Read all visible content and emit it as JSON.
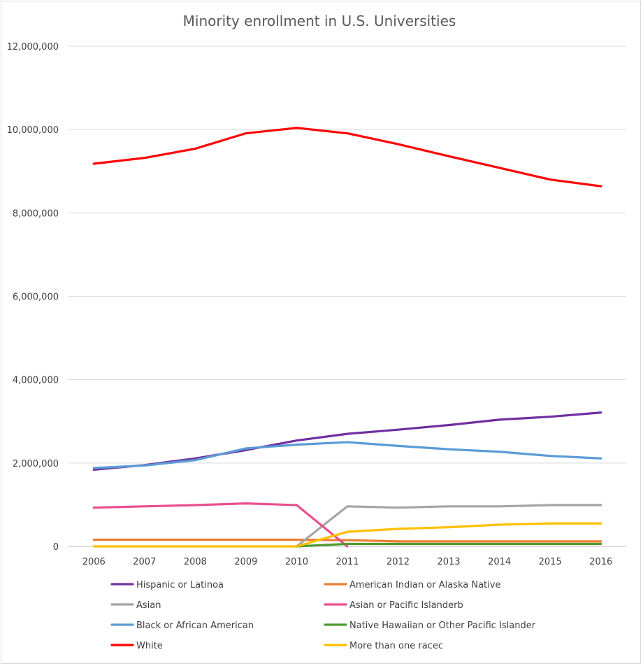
{
  "chart_data": {
    "type": "line",
    "title": "Minority enrollment in U.S. Universities",
    "xlabel": "",
    "ylabel": "",
    "categories": [
      "2006",
      "2007",
      "2008",
      "2009",
      "2010",
      "2011",
      "2012",
      "2013",
      "2014",
      "2015",
      "2016"
    ],
    "ylim": [
      0,
      12000000
    ],
    "yticks": [
      0,
      2000000,
      4000000,
      6000000,
      8000000,
      10000000,
      12000000
    ],
    "ytick_labels": [
      "0",
      "2,000,000",
      "4,000,000",
      "6,000,000",
      "8,000,000",
      "10,000,000",
      "12,000,000"
    ],
    "grid": true,
    "legend_position": "bottom",
    "series": [
      {
        "name": "Hispanic or Latinoa",
        "color": "#7030a0",
        "values": [
          1840000,
          1950000,
          2110000,
          2310000,
          2540000,
          2700000,
          2800000,
          2910000,
          3040000,
          3110000,
          3210000
        ]
      },
      {
        "name": "American Indian or Alaska Native",
        "color": "#ed7d31",
        "values": [
          160000,
          160000,
          160000,
          160000,
          160000,
          150000,
          120000,
          120000,
          120000,
          120000,
          120000
        ]
      },
      {
        "name": "Asian",
        "color": "#a5a5a5",
        "values": [
          null,
          null,
          null,
          null,
          0,
          960000,
          930000,
          960000,
          960000,
          990000,
          990000
        ]
      },
      {
        "name": "Asian or Pacific Islanderb",
        "color": "#e8508f",
        "values": [
          930000,
          960000,
          990000,
          1030000,
          990000,
          0,
          null,
          null,
          null,
          null,
          null
        ]
      },
      {
        "name": "Black or African American",
        "color": "#5b9bd5",
        "values": [
          1880000,
          1940000,
          2070000,
          2350000,
          2440000,
          2500000,
          2410000,
          2330000,
          2270000,
          2170000,
          2110000
        ]
      },
      {
        "name": "Native Hawaiian or Other Pacific Islander",
        "color": "#4e9a2f",
        "values": [
          null,
          null,
          null,
          null,
          0,
          60000,
          60000,
          60000,
          60000,
          60000,
          60000
        ]
      },
      {
        "name": "White",
        "color": "#ff0000",
        "values": [
          9180000,
          9320000,
          9540000,
          9910000,
          10040000,
          9910000,
          9650000,
          9360000,
          9080000,
          8800000,
          8640000
        ]
      },
      {
        "name": "More than one racec",
        "color": "#ffc000",
        "values": [
          0,
          0,
          0,
          0,
          0,
          350000,
          420000,
          460000,
          520000,
          550000,
          550000
        ]
      }
    ]
  }
}
